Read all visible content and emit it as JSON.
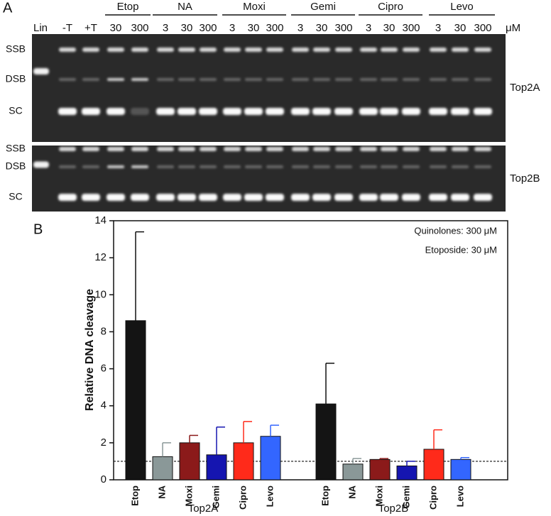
{
  "panel_a": {
    "label": "A",
    "lanes": [
      "Lin",
      "-T",
      "+T"
    ],
    "drugs": [
      {
        "name": "Etop",
        "concentrations": [
          "30",
          "300"
        ]
      },
      {
        "name": "NA",
        "concentrations": [
          "3",
          "30",
          "300"
        ]
      },
      {
        "name": "Moxi",
        "concentrations": [
          "3",
          "30",
          "300"
        ]
      },
      {
        "name": "Gemi",
        "concentrations": [
          "3",
          "30",
          "300"
        ]
      },
      {
        "name": "Cipro",
        "concentrations": [
          "3",
          "30",
          "300"
        ]
      },
      {
        "name": "Levo",
        "concentrations": [
          "3",
          "30",
          "300"
        ]
      }
    ],
    "unit": "μM",
    "gels": [
      {
        "name": "Top2A",
        "bands": [
          "SSB",
          "DSB",
          "SC"
        ]
      },
      {
        "name": "Top2B",
        "bands": [
          "SSB",
          "DSB",
          "SC"
        ]
      }
    ]
  },
  "chart_data": {
    "type": "bar",
    "panel_label": "B",
    "y_label": "Relative DNA cleavage",
    "annotations": [
      "Quinolones: 300 μM",
      "Etoposide: 30 μM"
    ],
    "categories": [
      "Top2A",
      "Top2B"
    ],
    "series": [
      {
        "name": "Etop",
        "color": "#141414",
        "values": [
          8.6,
          4.1
        ],
        "errors": [
          4.8,
          2.2
        ]
      },
      {
        "name": "NA",
        "color": "#8a9898",
        "values": [
          1.25,
          0.85
        ],
        "errors": [
          0.75,
          0.3
        ]
      },
      {
        "name": "Moxi",
        "color": "#8b1a1a",
        "values": [
          2.0,
          1.1
        ],
        "errors": [
          0.4,
          0.05
        ]
      },
      {
        "name": "Gemi",
        "color": "#1515b0",
        "values": [
          1.35,
          0.75
        ],
        "errors": [
          1.5,
          0.25
        ]
      },
      {
        "name": "Cipro",
        "color": "#ff2a1a",
        "values": [
          2.0,
          1.65
        ],
        "errors": [
          1.15,
          1.05
        ]
      },
      {
        "name": "Levo",
        "color": "#3366ff",
        "values": [
          2.35,
          1.1
        ],
        "errors": [
          0.6,
          0.1
        ]
      }
    ],
    "reference_line": 1,
    "ylim": [
      0,
      14
    ],
    "yticks": [
      0,
      2,
      4,
      6,
      8,
      10,
      12,
      14
    ]
  }
}
